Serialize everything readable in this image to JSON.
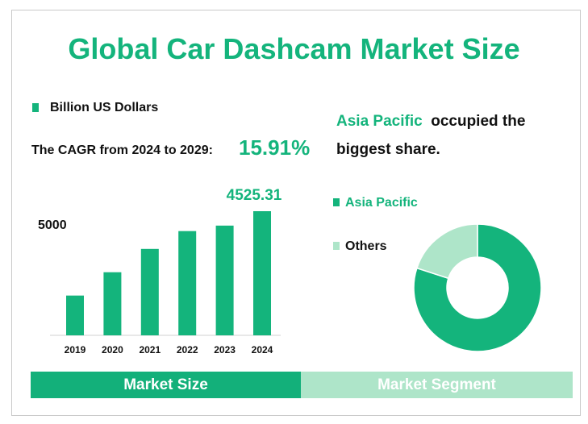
{
  "title": "Global Car Dashcam Market Size",
  "unit_legend": "Billion US Dollars",
  "cagr_label": "The CAGR from 2024 to 2029:",
  "cagr_value": "15.91%",
  "y_axis_label": "5000",
  "statement": {
    "highlight": "Asia Pacific",
    "line1_rest": "occupied the",
    "line2": "biggest share."
  },
  "tabs": {
    "left": "Market Size",
    "right": "Market Segment"
  },
  "colors": {
    "primary": "#14b47c",
    "light": "#aee5c9",
    "primary_tab": "#13b07a"
  },
  "chart_data": [
    {
      "type": "bar",
      "categories": [
        "2019",
        "2020",
        "2021",
        "2022",
        "2023",
        "2024"
      ],
      "values": [
        1450,
        2300,
        3150,
        3800,
        4000,
        4525.31
      ],
      "data_labels": [
        "",
        "",
        "",
        "",
        "",
        "4525.31"
      ],
      "ylim": [
        0,
        5000
      ]
    },
    {
      "type": "pie",
      "donut": true,
      "labels": [
        "Asia Pacific",
        "Others"
      ],
      "values": [
        80,
        20
      ],
      "colors": [
        "#14b47c",
        "#aee5c9"
      ]
    }
  ]
}
